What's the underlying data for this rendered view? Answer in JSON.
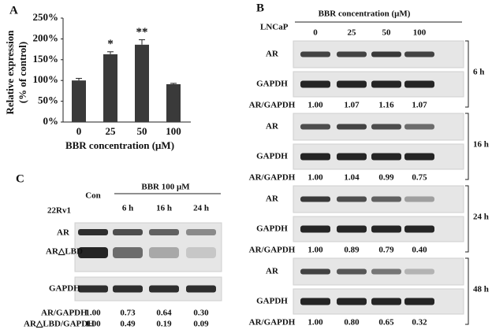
{
  "chart_data": {
    "type": "bar",
    "panel": "A",
    "categories": [
      "0",
      "25",
      "50",
      "100"
    ],
    "values": [
      100,
      163,
      186,
      91
    ],
    "errors": [
      5,
      6,
      12,
      2
    ],
    "annotations": [
      null,
      "*",
      "**",
      null
    ],
    "color": "#3a3a3a",
    "ylabel": [
      "Relative expression",
      "(% of control)"
    ],
    "xlabel": "BBR concentration (μM)",
    "ylim": [
      0,
      250
    ],
    "yticks": [
      {
        "value": 0,
        "label": "0%"
      },
      {
        "value": 50,
        "label": "50%"
      },
      {
        "value": 100,
        "label": "100%"
      },
      {
        "value": 150,
        "label": "150%"
      },
      {
        "value": 200,
        "label": "200%"
      },
      {
        "value": 250,
        "label": "250%"
      }
    ]
  },
  "panel_b": {
    "label": "B",
    "cell_line": "LNCaP",
    "header": "BBR concentration (μM)",
    "columns": [
      "0",
      "25",
      "50",
      "100"
    ],
    "blocks": [
      {
        "time": "6 h",
        "rows": [
          "AR",
          "GAPDH"
        ],
        "ratio_label": "AR/GAPDH",
        "ratios": [
          "1.00",
          "1.07",
          "1.16",
          "1.07"
        ]
      },
      {
        "time": "16 h",
        "rows": [
          "AR",
          "GAPDH"
        ],
        "ratio_label": "AR/GAPDH",
        "ratios": [
          "1.00",
          "1.04",
          "0.99",
          "0.75"
        ]
      },
      {
        "time": "24 h",
        "rows": [
          "AR",
          "GAPDH"
        ],
        "ratio_label": "AR/GAPDH",
        "ratios": [
          "1.00",
          "0.89",
          "0.79",
          "0.40"
        ]
      },
      {
        "time": "48 h",
        "rows": [
          "AR",
          "GAPDH"
        ],
        "ratio_label": "AR/GAPDH",
        "ratios": [
          "1.00",
          "0.80",
          "0.65",
          "0.32"
        ]
      }
    ]
  },
  "panel_c": {
    "label": "C",
    "cell_line": "22Rv1",
    "treatment": "BBR 100 μM",
    "columns": [
      "Con",
      "6 h",
      "16 h",
      "24 h"
    ],
    "rows": [
      "AR",
      "AR△LBD",
      "GAPDH"
    ],
    "ratios": [
      {
        "label": "AR/GAPDH",
        "values": [
          "1.00",
          "0.73",
          "0.64",
          "0.30"
        ]
      },
      {
        "label": "AR△LBD/GAPDH",
        "values": [
          "1.00",
          "0.49",
          "0.19",
          "0.09"
        ]
      }
    ]
  }
}
